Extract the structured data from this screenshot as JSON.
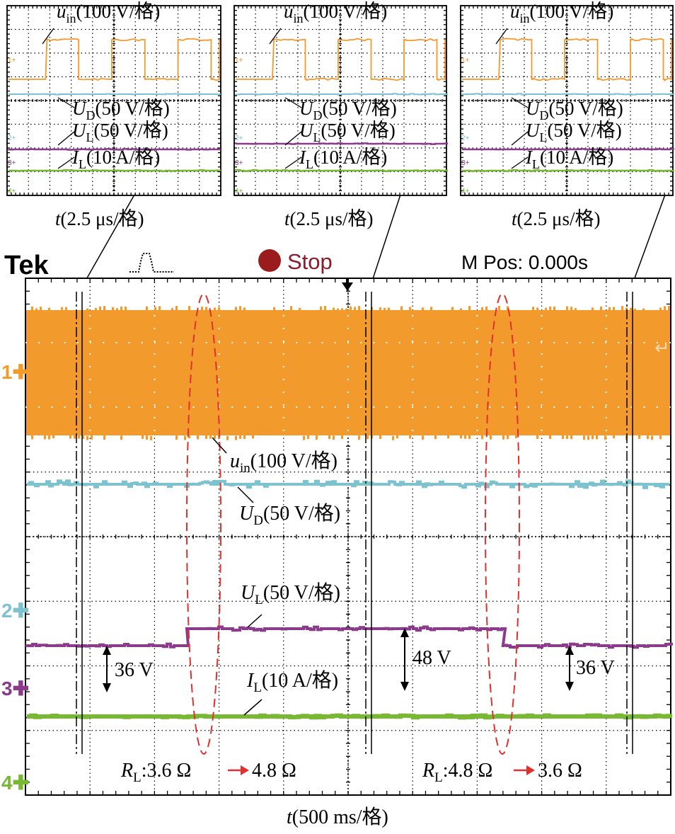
{
  "colors": {
    "uin": "#f39a2c",
    "ud": "#7cc3cf",
    "ul": "#8c3b8c",
    "il": "#78b832",
    "grid": "#000000",
    "stop_dot": "#9b1c1c",
    "stop_text": "#8b1c2c",
    "annot_ellipse": "#e03030"
  },
  "scope_header": {
    "brand": "Tek",
    "trigger_icon": "trigger-pulse-icon",
    "status_icon": "stop-dot-icon",
    "status": "Stop",
    "position": "M Pos: 0.000s"
  },
  "channel_markers": [
    "1",
    "2",
    "3",
    "4"
  ],
  "insets": [
    {
      "uin_label": "u",
      "uin_sub": "in",
      "uin_scale": "(100 V/格)",
      "ud_label": "U",
      "ud_sub": "D",
      "ud_scale": "(50 V/格)",
      "ul_label": "U",
      "ul_sub": "L",
      "ul_scale": "(50 V/格)",
      "il_label": "I",
      "il_sub": "L",
      "il_scale": "(10 A/格)",
      "time_label": "t",
      "time_scale": "(2.5 μs/格)"
    },
    {
      "uin_label": "u",
      "uin_sub": "in",
      "uin_scale": "(100 V/格)",
      "ud_label": "U",
      "ud_sub": "D",
      "ud_scale": "(50 V/格)",
      "ul_label": "U",
      "ul_sub": "L",
      "ul_scale": "(50 V/格)",
      "il_label": "I",
      "il_sub": "L",
      "il_scale": "(10 A/格)",
      "time_label": "t",
      "time_scale": "(2.5 μs/格)"
    },
    {
      "uin_label": "u",
      "uin_sub": "in",
      "uin_scale": "(100 V/格)",
      "ud_label": "U",
      "ud_sub": "D",
      "ud_scale": "(50 V/格)",
      "ul_label": "U",
      "ul_sub": "L",
      "ul_scale": "(50 V/格)",
      "il_label": "I",
      "il_sub": "L",
      "il_scale": "(10 A/格)",
      "time_label": "t",
      "time_scale": "(2.5 μs/格)"
    }
  ],
  "main": {
    "uin_label": "u",
    "uin_sub": "in",
    "uin_scale": "(100 V/格)",
    "ud_label": "U",
    "ud_sub": "D",
    "ud_scale": "(50 V/格)",
    "ul_label": "U",
    "ul_sub": "L",
    "ul_scale": "(50 V/格)",
    "il_label": "I",
    "il_sub": "L",
    "il_scale": "(10 A/格)",
    "time_label": "t",
    "time_scale": "(500 ms/格)",
    "step1": {
      "var": "R",
      "sub": "L",
      "text_from": ":3.6 Ω",
      "text_to": "4.8 Ω"
    },
    "step2": {
      "var": "R",
      "sub": "L",
      "text_from": ":4.8 Ω",
      "text_to": "3.6 Ω"
    },
    "dim1": "36 V",
    "dim2": "48 V",
    "dim3": "36 V"
  },
  "chart_data": {
    "type": "line",
    "x_unit_per_division": "500 ms",
    "x_divisions": 10,
    "y_divisions": 8,
    "series": [
      {
        "name": "u_in",
        "scale_per_div": "100 V",
        "waveform": "square (switching, rendered as filled band)"
      },
      {
        "name": "U_D",
        "scale_per_div": "50 V",
        "segments": [
          {
            "x": [
              0,
              5000
            ],
            "level": "constant"
          }
        ]
      },
      {
        "name": "U_L",
        "scale_per_div": "50 V",
        "unit": "V",
        "x": [
          0,
          1250,
          1250,
          3700,
          3700,
          5000
        ],
        "values": [
          36,
          36,
          48,
          48,
          36,
          36
        ]
      },
      {
        "name": "I_L",
        "scale_per_div": "10 A",
        "segments": [
          {
            "x": [
              0,
              5000
            ],
            "level": "constant"
          }
        ]
      }
    ],
    "load_steps": [
      {
        "at_ms": 1250,
        "from": "3.6 Ω",
        "to": "4.8 Ω"
      },
      {
        "at_ms": 3700,
        "from": "4.8 Ω",
        "to": "3.6 Ω"
      }
    ],
    "grid": true
  }
}
